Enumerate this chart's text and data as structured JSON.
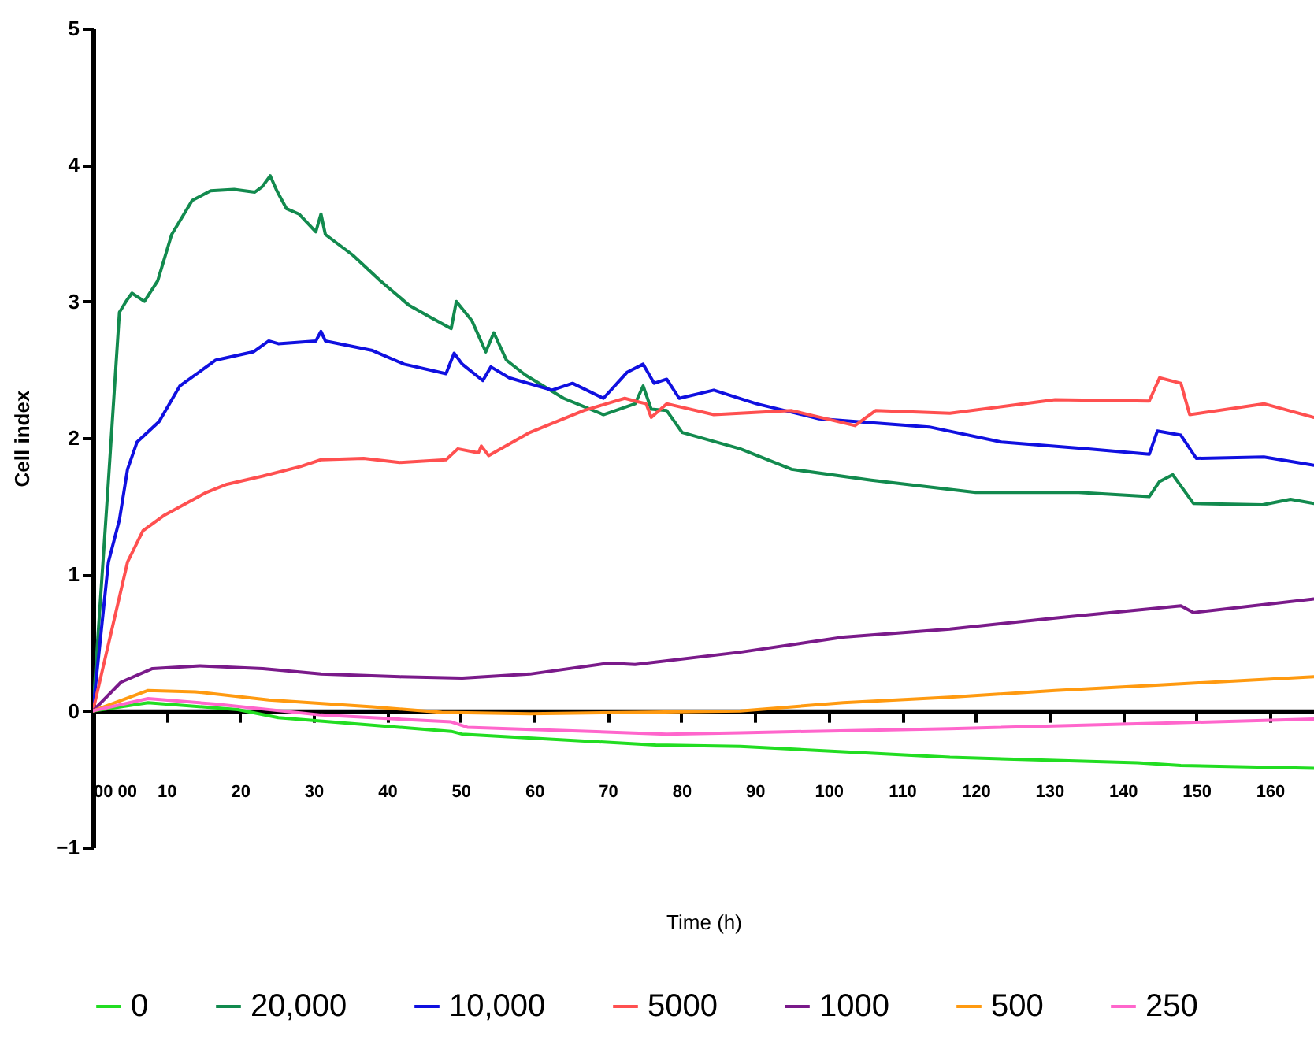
{
  "chart_data": {
    "type": "line",
    "xlabel": "Time (h)",
    "ylabel": "Cell index",
    "xlim": [
      0,
      166
    ],
    "ylim": [
      -1,
      5
    ],
    "xticks": [
      {
        "value": 0,
        "label": "00 00"
      },
      10,
      20,
      30,
      40,
      50,
      60,
      70,
      80,
      90,
      100,
      110,
      120,
      130,
      140,
      150,
      160
    ],
    "yticks": [
      -1,
      0,
      1,
      2,
      3,
      4,
      5
    ],
    "legend": "bottom",
    "series": [
      {
        "name": "0",
        "color": "#22dd22",
        "x": [
          0,
          7.5,
          19.7,
          25.2,
          48.7,
          50.2,
          76.5,
          88,
          116.5,
          142,
          147.9,
          166
        ],
        "values": [
          0,
          0.06,
          0.01,
          -0.05,
          -0.15,
          -0.17,
          -0.25,
          -0.26,
          -0.34,
          -0.38,
          -0.4,
          -0.42
        ]
      },
      {
        "name": "20,000",
        "color": "#128a4e",
        "x": [
          0,
          2,
          3.6,
          4.5,
          5.3,
          7,
          8.8,
          10.7,
          13.5,
          16,
          19.2,
          22,
          23,
          24.1,
          25,
          26.3,
          28,
          30.3,
          31,
          31.6,
          35.3,
          39.1,
          43,
          46,
          48.7,
          49.4,
          51.5,
          53.4,
          54.5,
          56.2,
          58.8,
          64,
          69.4,
          73.7,
          74.8,
          75.9,
          78,
          80.1,
          88,
          95,
          105.8,
          120,
          134,
          143.6,
          145,
          146.8,
          149.6,
          159,
          162.8,
          166
        ],
        "values": [
          0,
          1.6,
          2.92,
          3.0,
          3.06,
          3.0,
          3.15,
          3.49,
          3.74,
          3.81,
          3.82,
          3.8,
          3.84,
          3.92,
          3.81,
          3.68,
          3.64,
          3.51,
          3.64,
          3.49,
          3.34,
          3.15,
          2.97,
          2.88,
          2.8,
          3.0,
          2.86,
          2.63,
          2.77,
          2.57,
          2.46,
          2.29,
          2.17,
          2.25,
          2.38,
          2.21,
          2.2,
          2.04,
          1.92,
          1.77,
          1.69,
          1.6,
          1.6,
          1.57,
          1.68,
          1.73,
          1.52,
          1.51,
          1.55,
          1.52
        ]
      },
      {
        "name": "10,000",
        "color": "#1010e0",
        "x": [
          0,
          2.1,
          3.6,
          4.7,
          6,
          9,
          11.8,
          16.7,
          21.8,
          23.9,
          25.2,
          30.3,
          31,
          31.6,
          38,
          42.3,
          48,
          49.1,
          50.2,
          53,
          54.1,
          56.6,
          62.4,
          65.2,
          69.4,
          72.6,
          74.8,
          76.3,
          78,
          79.7,
          84.4,
          90.2,
          98.7,
          113.7,
          123.5,
          135,
          143.6,
          144.7,
          147.9,
          150,
          159.2,
          166
        ],
        "values": [
          0,
          1.09,
          1.4,
          1.77,
          1.97,
          2.12,
          2.38,
          2.57,
          2.63,
          2.71,
          2.69,
          2.71,
          2.78,
          2.71,
          2.64,
          2.54,
          2.47,
          2.62,
          2.54,
          2.42,
          2.52,
          2.44,
          2.35,
          2.4,
          2.29,
          2.48,
          2.54,
          2.4,
          2.43,
          2.29,
          2.35,
          2.25,
          2.14,
          2.08,
          1.97,
          1.92,
          1.88,
          2.05,
          2.02,
          1.85,
          1.86,
          1.8
        ]
      },
      {
        "name": "5000",
        "color": "#ff5050",
        "x": [
          0,
          4.7,
          6.8,
          9.6,
          15.4,
          18.2,
          23.1,
          28.2,
          31,
          36.8,
          41.7,
          48,
          49.6,
          52.4,
          52.8,
          53.8,
          59.4,
          66.7,
          72.3,
          73.7,
          75.2,
          75.9,
          78,
          84.4,
          95,
          103.6,
          106.4,
          116.5,
          130.8,
          143.6,
          145,
          147.9,
          149.1,
          159.2,
          166
        ],
        "values": [
          0,
          1.09,
          1.32,
          1.43,
          1.6,
          1.66,
          1.72,
          1.79,
          1.84,
          1.85,
          1.82,
          1.84,
          1.92,
          1.89,
          1.94,
          1.87,
          2.04,
          2.2,
          2.29,
          2.27,
          2.25,
          2.15,
          2.25,
          2.17,
          2.2,
          2.09,
          2.2,
          2.18,
          2.28,
          2.27,
          2.44,
          2.4,
          2.17,
          2.25,
          2.15
        ]
      },
      {
        "name": "1000",
        "color": "#7a1a8a",
        "x": [
          0,
          3.8,
          8.1,
          14.5,
          23.1,
          31,
          41.7,
          50.2,
          59.4,
          70.1,
          73.7,
          88,
          102,
          116.5,
          130.8,
          147.9,
          149.6,
          166
        ],
        "values": [
          0,
          0.21,
          0.31,
          0.33,
          0.31,
          0.27,
          0.25,
          0.24,
          0.27,
          0.35,
          0.34,
          0.43,
          0.54,
          0.6,
          0.68,
          0.77,
          0.72,
          0.82
        ]
      },
      {
        "name": "500",
        "color": "#ff9a10",
        "x": [
          0,
          7.5,
          13.9,
          23.9,
          38,
          47.4,
          59.4,
          73.7,
          88,
          102,
          116.5,
          130.8,
          145,
          166
        ],
        "values": [
          0,
          0.15,
          0.14,
          0.08,
          0.03,
          -0.01,
          -0.02,
          -0.01,
          0,
          0.06,
          0.1,
          0.15,
          0.19,
          0.25
        ]
      },
      {
        "name": "250",
        "color": "#ff66cc",
        "x": [
          0,
          7.5,
          16.7,
          31,
          48.7,
          50.9,
          78,
          88,
          116.5,
          145,
          166
        ],
        "values": [
          0,
          0.09,
          0.05,
          -0.03,
          -0.08,
          -0.12,
          -0.17,
          -0.16,
          -0.13,
          -0.09,
          -0.06
        ]
      }
    ]
  }
}
